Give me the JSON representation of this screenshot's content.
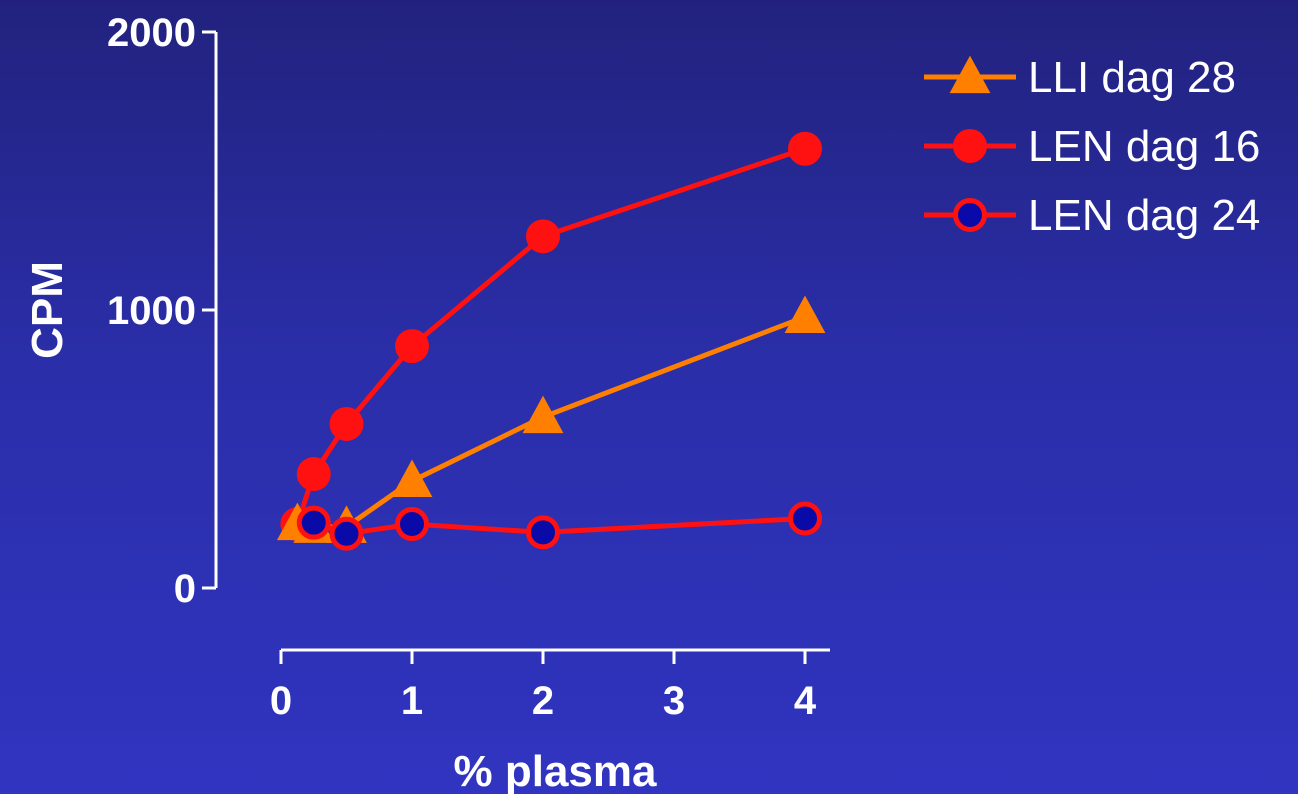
{
  "chart_data": {
    "type": "line",
    "xlabel": "% plasma",
    "ylabel": "CPM",
    "xlim": [
      0,
      4
    ],
    "ylim": [
      0,
      2000
    ],
    "x_ticks": [
      "0",
      "1",
      "2",
      "3",
      "4"
    ],
    "y_ticks": [
      "0",
      "1000",
      "2000"
    ],
    "grid": false,
    "legend_position": "top-right",
    "series": [
      {
        "name": "LLI dag 28",
        "marker": "triangle",
        "color": "#ff7f00",
        "marker_fill": "#ff7f00",
        "points": [
          {
            "x": 0.125,
            "y": 230
          },
          {
            "x": 0.25,
            "y": 220
          },
          {
            "x": 0.5,
            "y": 220
          },
          {
            "x": 1,
            "y": 385
          },
          {
            "x": 2,
            "y": 615
          },
          {
            "x": 4,
            "y": 975
          }
        ]
      },
      {
        "name": "LEN dag 16",
        "marker": "circle",
        "color": "#ff1111",
        "marker_fill": "#ff1111",
        "points": [
          {
            "x": 0.125,
            "y": 230
          },
          {
            "x": 0.25,
            "y": 410
          },
          {
            "x": 0.5,
            "y": 590
          },
          {
            "x": 1,
            "y": 870
          },
          {
            "x": 2,
            "y": 1265
          },
          {
            "x": 4,
            "y": 1580
          }
        ]
      },
      {
        "name": "LEN dag 24",
        "marker": "circle-hollow",
        "color": "#ff1111",
        "marker_fill": "#0a0aa8",
        "points": [
          {
            "x": 0.25,
            "y": 235
          },
          {
            "x": 0.5,
            "y": 195
          },
          {
            "x": 1,
            "y": 230
          },
          {
            "x": 2,
            "y": 200
          },
          {
            "x": 4,
            "y": 250
          }
        ]
      }
    ]
  }
}
